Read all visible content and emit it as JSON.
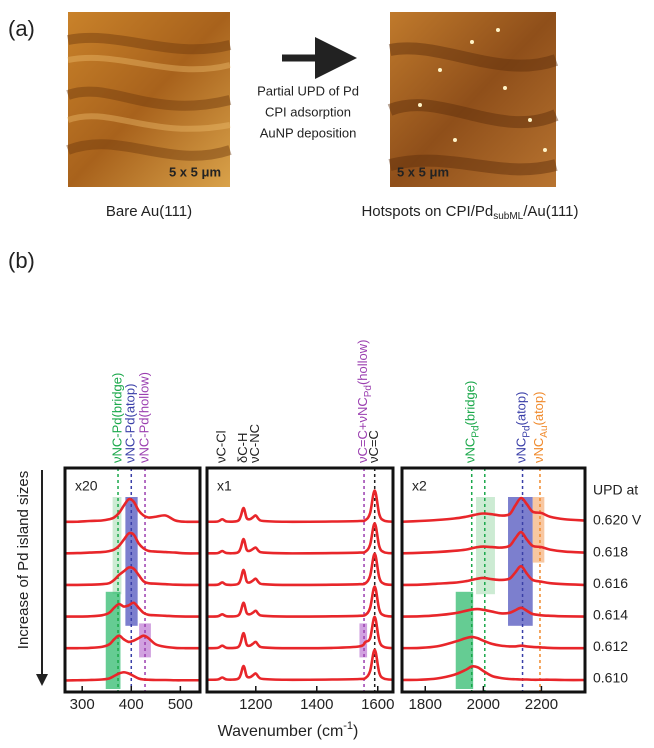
{
  "figure": {
    "tag_a": "(a)",
    "tag_b": "(b)",
    "left_caption": "Bare Au(111)",
    "right_caption": {
      "pre": "Hotspots on CPI/Pd",
      "sub": "subML",
      "post": "/Au(111)"
    },
    "scale_left": "5 x 5 μm",
    "scale_right": "5 x 5 μm",
    "steps": [
      "Partial UPD of Pd",
      "CPI adsorption",
      "AuNP deposition"
    ],
    "x_label": {
      "pre": "Wavenumber (cm",
      "sup": "-1",
      "post": ")"
    },
    "y_label": "Increase of Pd island sizes",
    "upd_title": "UPD at",
    "upd_labels": [
      "0.620 V",
      "0.618",
      "0.616",
      "0.614",
      "0.612",
      "0.610"
    ]
  },
  "chart_data": [
    {
      "type": "line",
      "scale_label": "x20",
      "color": "#e8262a",
      "xlim": [
        265,
        540
      ],
      "xticks": [
        300,
        400,
        500
      ],
      "x": [
        265,
        290,
        315,
        340,
        355,
        365,
        375,
        385,
        395,
        405,
        415,
        425,
        435,
        450,
        470,
        490,
        510,
        540
      ],
      "series": [
        {
          "values": [
            0.05,
            0.05,
            0.08,
            0.1,
            0.15,
            0.22,
            0.4,
            0.7,
            0.95,
            0.85,
            0.5,
            0.3,
            0.22,
            0.25,
            0.3,
            0.1,
            0.05,
            0.05
          ]
        },
        {
          "values": [
            0.05,
            0.06,
            0.08,
            0.1,
            0.14,
            0.2,
            0.35,
            0.6,
            0.85,
            0.8,
            0.45,
            0.25,
            0.15,
            0.12,
            0.1,
            0.08,
            0.05,
            0.05
          ]
        },
        {
          "values": [
            0.05,
            0.05,
            0.06,
            0.08,
            0.12,
            0.25,
            0.45,
            0.6,
            0.75,
            0.7,
            0.45,
            0.2,
            0.12,
            0.1,
            0.08,
            0.06,
            0.05,
            0.05
          ]
        },
        {
          "values": [
            0.05,
            0.05,
            0.06,
            0.1,
            0.2,
            0.4,
            0.55,
            0.45,
            0.5,
            0.6,
            0.4,
            0.2,
            0.12,
            0.1,
            0.08,
            0.06,
            0.05,
            0.05
          ]
        },
        {
          "values": [
            0.05,
            0.05,
            0.06,
            0.1,
            0.2,
            0.4,
            0.55,
            0.4,
            0.3,
            0.35,
            0.45,
            0.55,
            0.45,
            0.2,
            0.1,
            0.06,
            0.05,
            0.05
          ]
        },
        {
          "values": [
            0.02,
            0.03,
            0.04,
            0.06,
            0.1,
            0.2,
            0.3,
            0.35,
            0.3,
            0.2,
            0.1,
            0.06,
            0.05,
            0.04,
            0.04,
            0.03,
            0.03,
            0.03
          ]
        }
      ],
      "annotations": [
        {
          "x": 373,
          "color": "#1aa84a",
          "dashed": true,
          "label": "νNC-Pd(bridge)"
        },
        {
          "x": 400,
          "color": "#3a3fa8",
          "dashed": true,
          "label": "νNC-Pd(atop)"
        },
        {
          "x": 428,
          "color": "#9b3fb0",
          "dashed": true,
          "label": "νNC-Pd(hollow)"
        }
      ],
      "highlights": [
        {
          "x": [
            362,
            380
          ],
          "rows": [
            0,
            2
          ],
          "color": "#bfe6c8"
        },
        {
          "x": [
            388,
            413
          ],
          "rows": [
            0,
            3
          ],
          "color": "#5b5fc2"
        },
        {
          "x": [
            348,
            378
          ],
          "rows": [
            3,
            5
          ],
          "color": "#3fbf78"
        },
        {
          "x": [
            416,
            440
          ],
          "rows": [
            4,
            4
          ],
          "color": "#c58ad8"
        }
      ]
    },
    {
      "type": "line",
      "scale_label": "x1",
      "color": "#e8262a",
      "xlim": [
        1040,
        1650
      ],
      "xticks": [
        1200,
        1400,
        1600
      ],
      "x": [
        1040,
        1075,
        1090,
        1105,
        1140,
        1150,
        1160,
        1170,
        1180,
        1190,
        1200,
        1210,
        1225,
        1300,
        1450,
        1540,
        1560,
        1575,
        1590,
        1605,
        1620,
        1650
      ],
      "series": [
        {
          "values": [
            0.05,
            0.06,
            0.15,
            0.06,
            0.08,
            0.25,
            0.6,
            0.2,
            0.15,
            0.22,
            0.3,
            0.15,
            0.08,
            0.05,
            0.06,
            0.08,
            0.12,
            0.4,
            1.3,
            0.35,
            0.1,
            0.05
          ]
        },
        {
          "values": [
            0.05,
            0.06,
            0.14,
            0.06,
            0.08,
            0.25,
            0.62,
            0.2,
            0.15,
            0.22,
            0.28,
            0.14,
            0.08,
            0.05,
            0.06,
            0.08,
            0.12,
            0.4,
            1.25,
            0.33,
            0.1,
            0.05
          ]
        },
        {
          "values": [
            0.05,
            0.06,
            0.15,
            0.06,
            0.08,
            0.26,
            0.65,
            0.2,
            0.15,
            0.22,
            0.3,
            0.15,
            0.08,
            0.05,
            0.06,
            0.08,
            0.12,
            0.42,
            1.3,
            0.35,
            0.1,
            0.05
          ]
        },
        {
          "values": [
            0.05,
            0.06,
            0.14,
            0.06,
            0.08,
            0.24,
            0.6,
            0.2,
            0.14,
            0.2,
            0.28,
            0.14,
            0.08,
            0.05,
            0.06,
            0.08,
            0.12,
            0.4,
            1.25,
            0.33,
            0.1,
            0.05
          ]
        },
        {
          "values": [
            0.05,
            0.06,
            0.15,
            0.06,
            0.08,
            0.26,
            0.65,
            0.2,
            0.15,
            0.22,
            0.3,
            0.15,
            0.08,
            0.05,
            0.06,
            0.12,
            0.3,
            0.45,
            1.3,
            0.35,
            0.1,
            0.05
          ]
        },
        {
          "values": [
            0.05,
            0.06,
            0.14,
            0.06,
            0.08,
            0.24,
            0.6,
            0.2,
            0.15,
            0.22,
            0.3,
            0.15,
            0.08,
            0.05,
            0.06,
            0.08,
            0.12,
            0.4,
            1.25,
            0.33,
            0.1,
            0.05
          ]
        }
      ],
      "annotations": [
        {
          "x": 1090,
          "color": "#222222",
          "dashed": false,
          "label": "νC-Cl"
        },
        {
          "x": 1160,
          "color": "#222222",
          "dashed": false,
          "label": "δC-H"
        },
        {
          "x": 1200,
          "color": "#222222",
          "dashed": false,
          "label": "νC-NC"
        },
        {
          "x": 1555,
          "color": "#9b3fb0",
          "dashed": true,
          "label": {
            "pre": "νC=C+νNC",
            "sub": "Pd",
            "post": "(hollow)"
          }
        },
        {
          "x": 1590,
          "color": "#222222",
          "dashed": true,
          "label": "νC=C"
        }
      ],
      "highlights": [
        {
          "x": [
            1540,
            1565
          ],
          "rows": [
            4,
            4
          ],
          "color": "#c58ad8"
        }
      ]
    },
    {
      "type": "line",
      "scale_label": "x2",
      "color": "#e8262a",
      "xlim": [
        1720,
        2350
      ],
      "xticks": [
        1800,
        2000,
        2200
      ],
      "x": [
        1720,
        1780,
        1840,
        1900,
        1940,
        1960,
        1980,
        2000,
        2030,
        2060,
        2090,
        2110,
        2130,
        2150,
        2170,
        2200,
        2230,
        2280,
        2350
      ],
      "series": [
        {
          "values": [
            0.05,
            0.08,
            0.12,
            0.18,
            0.25,
            0.3,
            0.35,
            0.38,
            0.35,
            0.3,
            0.35,
            0.7,
            1.0,
            0.75,
            0.45,
            0.4,
            0.25,
            0.15,
            0.1
          ]
        },
        {
          "values": [
            0.05,
            0.07,
            0.1,
            0.15,
            0.2,
            0.25,
            0.3,
            0.32,
            0.3,
            0.28,
            0.35,
            0.65,
            0.9,
            0.6,
            0.35,
            0.3,
            0.2,
            0.12,
            0.08
          ]
        },
        {
          "values": [
            0.05,
            0.06,
            0.1,
            0.14,
            0.2,
            0.25,
            0.3,
            0.33,
            0.28,
            0.25,
            0.3,
            0.55,
            0.8,
            0.5,
            0.25,
            0.18,
            0.12,
            0.08,
            0.05
          ]
        },
        {
          "values": [
            0.05,
            0.06,
            0.1,
            0.18,
            0.28,
            0.33,
            0.35,
            0.32,
            0.25,
            0.18,
            0.2,
            0.3,
            0.4,
            0.28,
            0.15,
            0.1,
            0.08,
            0.06,
            0.05
          ]
        },
        {
          "values": [
            0.05,
            0.06,
            0.12,
            0.3,
            0.45,
            0.5,
            0.45,
            0.35,
            0.22,
            0.15,
            0.12,
            0.12,
            0.15,
            0.12,
            0.1,
            0.08,
            0.06,
            0.05,
            0.05
          ]
        },
        {
          "values": [
            0.04,
            0.05,
            0.1,
            0.25,
            0.45,
            0.58,
            0.55,
            0.4,
            0.2,
            0.12,
            0.08,
            0.07,
            0.06,
            0.06,
            0.05,
            0.05,
            0.05,
            0.04,
            0.04
          ]
        }
      ],
      "annotations": [
        {
          "x": 1960,
          "color": "#1aa84a",
          "dashed": true,
          "label": {
            "pre": "νNC",
            "sub": "Pd",
            "post": "(bridge)"
          }
        },
        {
          "x": 2005,
          "color": "#1aa84a",
          "dashed": true
        },
        {
          "x": 2135,
          "color": "#3a3fa8",
          "dashed": true,
          "label": {
            "pre": "νNC",
            "sub": "Pd",
            "post": "(atop)"
          }
        },
        {
          "x": 2195,
          "color": "#f08a2c",
          "dashed": true,
          "label": {
            "pre": "νNC",
            "sub": "Au",
            "post": "(atop)"
          }
        }
      ],
      "highlights": [
        {
          "x": [
            1975,
            2040
          ],
          "rows": [
            0,
            2
          ],
          "color": "#bfe6c8"
        },
        {
          "x": [
            2085,
            2170
          ],
          "rows": [
            0,
            3
          ],
          "color": "#5b5fc2"
        },
        {
          "x": [
            2170,
            2210
          ],
          "rows": [
            0,
            1
          ],
          "color": "#f6b98a"
        },
        {
          "x": [
            1905,
            1965
          ],
          "rows": [
            3,
            5
          ],
          "color": "#3fbf78"
        }
      ]
    }
  ]
}
